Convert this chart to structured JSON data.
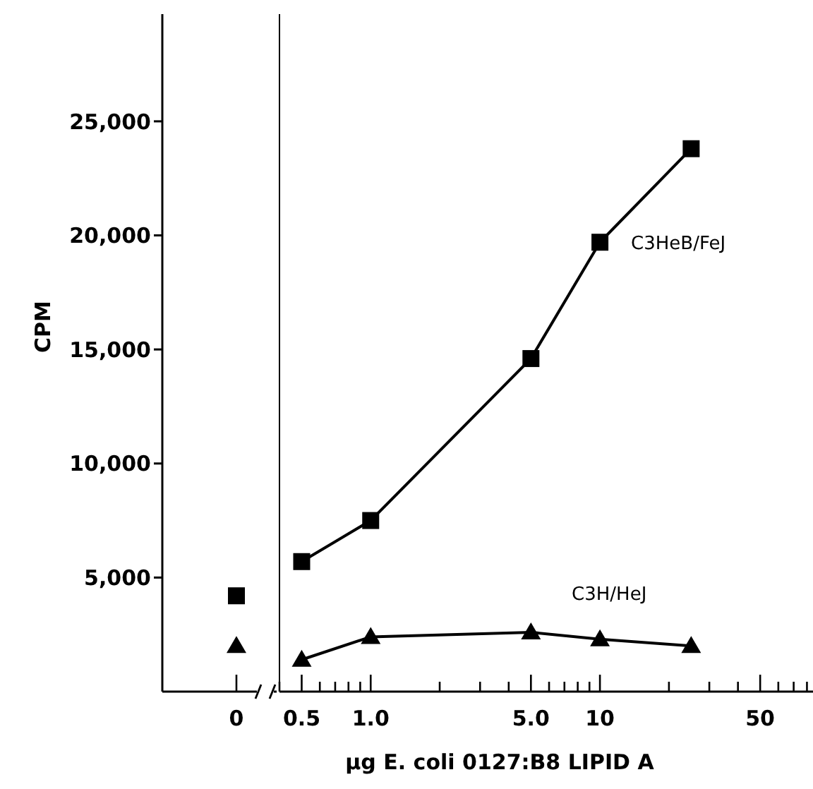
{
  "chart_data": [
    {
      "type": "line",
      "ylabel": "CPM",
      "categories": [
        "0"
      ],
      "series": [
        {
          "color": "#000000",
          "marker": "square",
          "values": [
            4200
          ]
        },
        {
          "color": "#000000",
          "marker": "triangle",
          "values": [
            2000
          ]
        }
      ],
      "ylim": [
        0,
        29700
      ],
      "yticks": [
        {
          "value": 5000,
          "label": "5,000"
        },
        {
          "value": 10000,
          "label": "10,000"
        },
        {
          "value": 15000,
          "label": "15,000"
        },
        {
          "value": 20000,
          "label": "20,000"
        },
        {
          "value": 25000,
          "label": "25,000"
        }
      ],
      "line_style": "solid"
    },
    {
      "type": "line",
      "xlabel": "µg E. coli 0127:B8 LIPID A",
      "x": [
        0.5,
        1.0,
        5.0,
        10,
        25
      ],
      "series": [
        {
          "name": "C3HeB/FeJ",
          "color": "#000000",
          "marker": "square",
          "values": [
            5700,
            7500,
            14600,
            19700,
            23800
          ]
        },
        {
          "name": "C3H/HeJ",
          "color": "#000000",
          "marker": "triangle",
          "values": [
            1400,
            2400,
            2600,
            2300,
            2000
          ]
        }
      ],
      "log": "x",
      "xlim": [
        0.4,
        85
      ],
      "xticks": [
        {
          "value": 0.4,
          "label": null
        },
        0.5,
        {
          "value": 0.6,
          "label": null
        },
        {
          "value": 0.7,
          "label": null
        },
        {
          "value": 0.8,
          "label": null
        },
        {
          "value": 0.9,
          "label": null
        },
        {
          "value": 1,
          "label": "1.0"
        },
        {
          "value": 2,
          "label": null
        },
        {
          "value": 3,
          "label": null
        },
        {
          "value": 4,
          "label": null
        },
        {
          "value": 5,
          "label": "5.0"
        },
        {
          "value": 6,
          "label": null
        },
        {
          "value": 7,
          "label": null
        },
        {
          "value": 8,
          "label": null
        },
        {
          "value": 9,
          "label": null
        },
        10,
        {
          "value": 20,
          "label": null
        },
        {
          "value": 30,
          "label": null
        },
        {
          "value": 40,
          "label": null
        },
        50,
        {
          "value": 60,
          "label": null
        },
        {
          "value": 70,
          "label": null
        },
        {
          "value": 80,
          "label": null
        }
      ],
      "ylim": [
        0,
        29700
      ],
      "tick_labels": "x",
      "line_style": "solid"
    }
  ]
}
